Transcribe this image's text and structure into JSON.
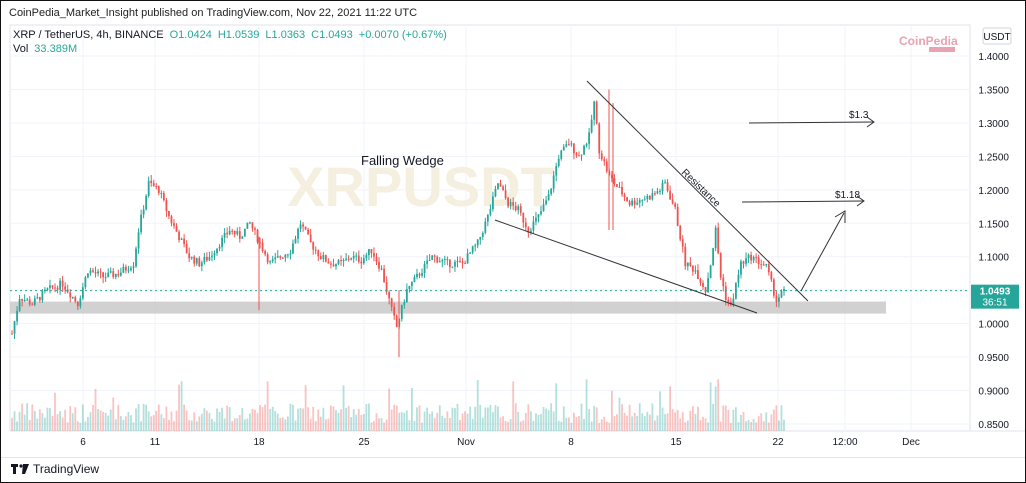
{
  "header": {
    "published_by": "CoinPedia_Market_Insight published on TradingView.com, Nov 22, 2021 11:22 UTC",
    "symbol": "XRP / TetherUS, 4h, BINANCE",
    "open": "O1.0424",
    "high": "H1.0539",
    "low": "L1.0363",
    "close": "C1.0493",
    "change": "+0.0070 (+0.67%)",
    "vol_label": "Vol",
    "vol_value": "33.389M"
  },
  "logo": {
    "line1": "CoinPedia",
    "line2": ""
  },
  "watermark": "XRPUSDT",
  "currency_button": "USDT",
  "last_price_tag": {
    "price": "1.0493",
    "countdown": "36:51"
  },
  "annotations": {
    "pattern": "Falling Wedge",
    "resistance": "Resistance",
    "target1": "$1.3",
    "target2": "$1.18"
  },
  "footer": {
    "brand": "TradingView"
  },
  "colors": {
    "up": "#26a69a",
    "down": "#ef5350",
    "grid": "#f0f3fa",
    "support_zone": "#c9c9c9"
  },
  "chart_data": {
    "type": "candlestick",
    "title": "",
    "xlabel": "",
    "ylabel": "",
    "ylim": [
      0.84,
      1.42
    ],
    "y_ticks": [
      "1.4000",
      "1.3500",
      "1.3000",
      "1.2500",
      "1.2000",
      "1.1500",
      "1.1000",
      "1.0500",
      "1.0000",
      "0.9500",
      "0.9000",
      "0.8500"
    ],
    "x_ticks": [
      "6",
      "11",
      "18",
      "25",
      "Nov",
      "8",
      "15",
      "22",
      "12:00",
      "Dec"
    ],
    "path_points": [
      [
        0,
        0.985
      ],
      [
        3,
        1.04
      ],
      [
        8,
        1.03
      ],
      [
        14,
        1.05
      ],
      [
        20,
        1.06
      ],
      [
        26,
        1.03
      ],
      [
        30,
        1.08
      ],
      [
        36,
        1.07
      ],
      [
        42,
        1.075
      ],
      [
        48,
        1.09
      ],
      [
        50,
        1.14
      ],
      [
        54,
        1.21
      ],
      [
        58,
        1.2
      ],
      [
        62,
        1.16
      ],
      [
        66,
        1.13
      ],
      [
        70,
        1.1
      ],
      [
        74,
        1.09
      ],
      [
        78,
        1.1
      ],
      [
        82,
        1.12
      ],
      [
        86,
        1.14
      ],
      [
        90,
        1.13
      ],
      [
        94,
        1.15
      ],
      [
        98,
        1.12
      ],
      [
        102,
        1.09
      ],
      [
        106,
        1.1
      ],
      [
        110,
        1.11
      ],
      [
        114,
        1.15
      ],
      [
        118,
        1.12
      ],
      [
        122,
        1.1
      ],
      [
        126,
        1.09
      ],
      [
        130,
        1.09
      ],
      [
        134,
        1.1
      ],
      [
        138,
        1.095
      ],
      [
        142,
        1.11
      ],
      [
        146,
        1.08
      ],
      [
        150,
        1.02
      ],
      [
        152,
        0.995
      ],
      [
        156,
        1.05
      ],
      [
        160,
        1.07
      ],
      [
        166,
        1.1
      ],
      [
        172,
        1.09
      ],
      [
        178,
        1.09
      ],
      [
        184,
        1.12
      ],
      [
        188,
        1.16
      ],
      [
        192,
        1.21
      ],
      [
        196,
        1.18
      ],
      [
        200,
        1.17
      ],
      [
        204,
        1.14
      ],
      [
        208,
        1.16
      ],
      [
        212,
        1.19
      ],
      [
        216,
        1.25
      ],
      [
        220,
        1.27
      ],
      [
        224,
        1.25
      ],
      [
        228,
        1.28
      ],
      [
        230,
        1.33
      ],
      [
        232,
        1.26
      ],
      [
        236,
        1.22
      ],
      [
        240,
        1.2
      ],
      [
        244,
        1.18
      ],
      [
        248,
        1.185
      ],
      [
        252,
        1.19
      ],
      [
        256,
        1.2
      ],
      [
        258,
        1.21
      ],
      [
        262,
        1.17
      ],
      [
        266,
        1.09
      ],
      [
        270,
        1.08
      ],
      [
        274,
        1.05
      ],
      [
        276,
        1.09
      ],
      [
        278,
        1.14
      ],
      [
        280,
        1.07
      ],
      [
        282,
        1.04
      ],
      [
        284,
        1.025
      ],
      [
        288,
        1.09
      ],
      [
        292,
        1.1
      ],
      [
        296,
        1.09
      ],
      [
        298,
        1.085
      ],
      [
        300,
        1.06
      ],
      [
        302,
        1.035
      ],
      [
        305,
        1.049
      ]
    ],
    "support_zone": [
      1.015,
      1.03
    ],
    "last_price": 1.0493
  }
}
